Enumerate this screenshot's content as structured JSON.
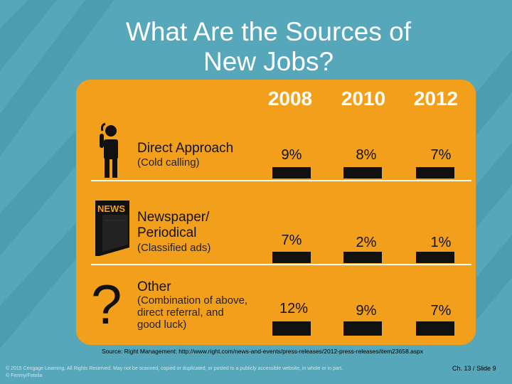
{
  "slide": {
    "title_line1": "What Are the Sources of",
    "title_line2": "New Jobs?",
    "years": [
      "2008",
      "2010",
      "2012"
    ],
    "rows": [
      {
        "label": "Direct Approach",
        "sublabel": "(Cold calling)",
        "icon": "person-phone-icon",
        "values": [
          "9%",
          "8%",
          "7%"
        ]
      },
      {
        "label": "Newspaper/ Periodical",
        "label_line1": "Newspaper/",
        "label_line2": "Periodical",
        "sublabel": "(Classified ads)",
        "icon": "newspaper-icon",
        "icon_text": "NEWS",
        "values": [
          "7%",
          "2%",
          "1%"
        ]
      },
      {
        "label": "Other",
        "sublabel_line1": "(Combination of above,",
        "sublabel_line2": "direct referral, and",
        "sublabel_line3": "good luck)",
        "icon": "question-mark-icon",
        "icon_text": "?",
        "values": [
          "12%",
          "9%",
          "7%"
        ]
      }
    ],
    "source": "Source: Right Management: http://www.right.com/news-and-events/press-releases/2012-press-releases/item23658.aspx",
    "copyright_line1": "© 2015 Cengage Learning. All Rights Reserved. May not be scanned, copied or duplicated, or posted to a publicly accessible website, in whole or in part.",
    "copyright_line2": "© Fenmy/Fotolia",
    "slide_number": "Ch. 13 / Slide 9"
  },
  "colors": {
    "background": "#56a7ba",
    "panel": "#f2a01c",
    "text_dark": "#111111",
    "title": "#ffffff"
  }
}
